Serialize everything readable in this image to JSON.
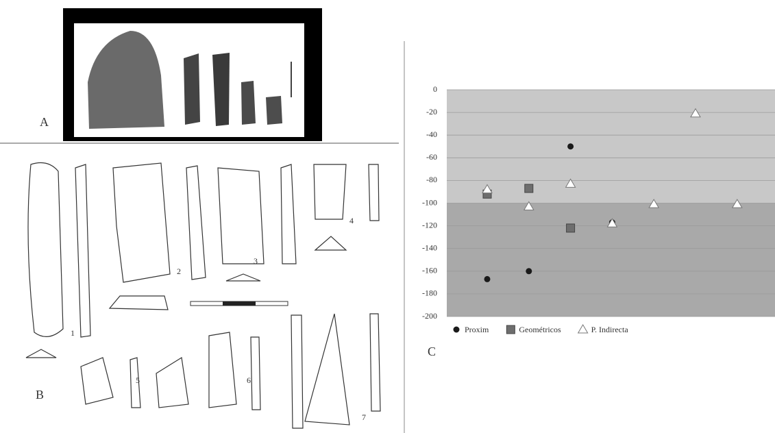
{
  "panel_labels": {
    "a": "A",
    "b": "B",
    "c": "C"
  },
  "figure_numbers": [
    "1",
    "2",
    "3",
    "4",
    "5",
    "6",
    "7"
  ],
  "chart_data": {
    "type": "scatter",
    "categories": [
      null,
      null,
      null,
      null,
      null,
      null,
      null
    ],
    "ylim": [
      -200,
      0
    ],
    "yticks": [
      0,
      -20,
      -40,
      -60,
      -80,
      -100,
      -120,
      -140,
      -160,
      -180,
      -200
    ],
    "grid": true,
    "shading": [
      {
        "from": 0,
        "to": -100,
        "color": "#c8c8c8"
      },
      {
        "from": -100,
        "to": -200,
        "color": "#a9a9a9"
      }
    ],
    "legend": "bottom-left",
    "series": [
      {
        "name": "Proxim",
        "marker": "circle",
        "color": "#1a1a1a",
        "values": [
          -167,
          -160,
          -50,
          -117,
          null,
          null,
          null
        ]
      },
      {
        "name": "Geométricos",
        "marker": "square",
        "color": "#6e6e6e",
        "values": [
          -92,
          -87,
          -122,
          null,
          null,
          null,
          null
        ]
      },
      {
        "name": "P. Indirecta",
        "marker": "triangle",
        "color": "#ffffff",
        "values": [
          -88,
          -103,
          -83,
          -118,
          -101,
          -21,
          -101
        ]
      }
    ]
  }
}
